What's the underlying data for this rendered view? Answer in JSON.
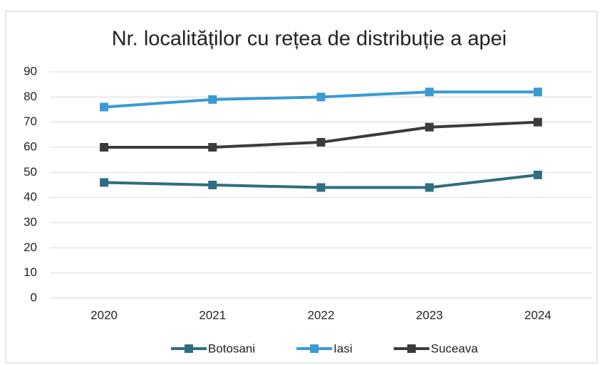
{
  "chart_data": {
    "type": "line",
    "title": "Nr. localităților cu rețea de distribuție a apei",
    "categories": [
      "2020",
      "2021",
      "2022",
      "2023",
      "2024"
    ],
    "series": [
      {
        "name": "Botosani",
        "color": "#2f6e80",
        "values": [
          46,
          45,
          44,
          44,
          49
        ]
      },
      {
        "name": "Iasi",
        "color": "#3a9ad2",
        "values": [
          76,
          79,
          80,
          82,
          82
        ]
      },
      {
        "name": "Suceava",
        "color": "#3b3b3b",
        "values": [
          60,
          60,
          62,
          68,
          70
        ]
      }
    ],
    "ylim": [
      0,
      90
    ],
    "yticks": [
      0,
      10,
      20,
      30,
      40,
      50,
      60,
      70,
      80,
      90
    ],
    "grid": true,
    "legend": "bottom"
  }
}
